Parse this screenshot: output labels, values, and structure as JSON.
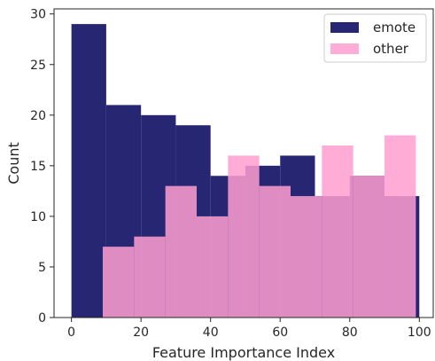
{
  "chart_data": {
    "type": "bar",
    "histogram": true,
    "xlabel": "Feature Importance Index",
    "ylabel": "Count",
    "xlim": [
      -5,
      104
    ],
    "ylim": [
      0,
      30.5
    ],
    "xticks": [
      0,
      20,
      40,
      60,
      80,
      100
    ],
    "yticks": [
      0,
      5,
      10,
      15,
      20,
      25,
      30
    ],
    "grid": false,
    "legend_position": "top-right",
    "series": [
      {
        "name": "emote",
        "color": "#262673",
        "bins": [
          [
            0,
            10
          ],
          [
            10,
            20
          ],
          [
            20,
            30
          ],
          [
            30,
            40
          ],
          [
            40,
            50
          ],
          [
            50,
            60
          ],
          [
            60,
            70
          ],
          [
            70,
            80
          ],
          [
            80,
            90
          ],
          [
            90,
            100
          ]
        ],
        "values": [
          29,
          21,
          20,
          19,
          14,
          15,
          16,
          12,
          14,
          12
        ]
      },
      {
        "name": "other",
        "color": "#ff9fd0",
        "alpha": 0.85,
        "bins": [
          [
            9,
            18
          ],
          [
            18,
            27
          ],
          [
            27,
            36
          ],
          [
            36,
            45
          ],
          [
            45,
            54
          ],
          [
            54,
            63
          ],
          [
            63,
            72
          ],
          [
            72,
            81
          ],
          [
            81,
            90
          ],
          [
            90,
            99
          ]
        ],
        "values": [
          7,
          8,
          13,
          10,
          16,
          13,
          12,
          17,
          14,
          18
        ]
      }
    ]
  }
}
